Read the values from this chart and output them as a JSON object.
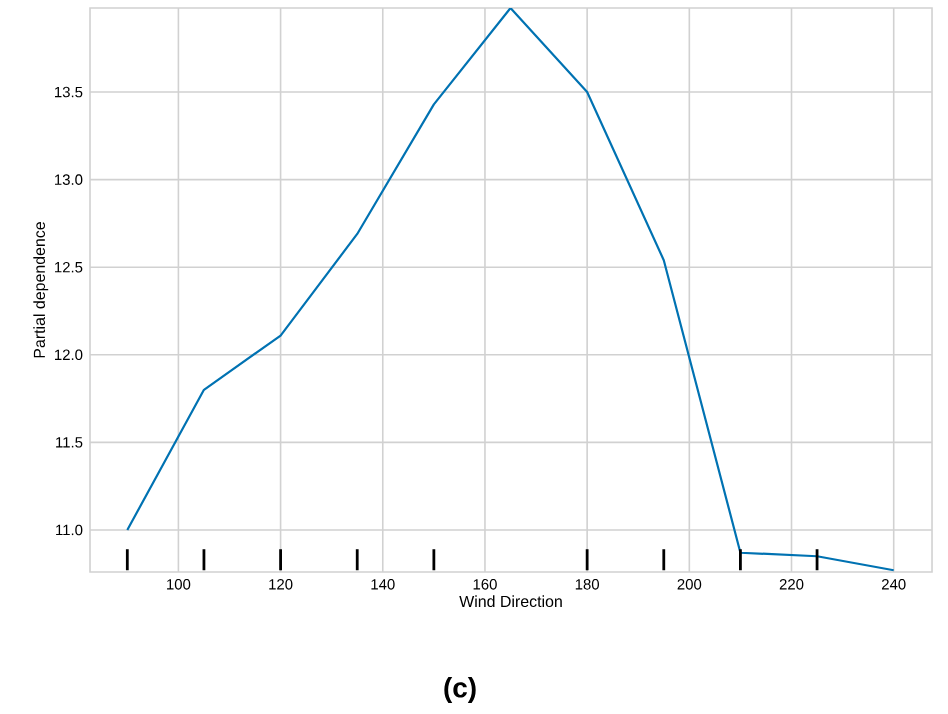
{
  "chart_data": {
    "type": "line",
    "xlabel": "Wind Direction",
    "ylabel": "Partial dependence",
    "annotations": [
      "**(c)**"
    ],
    "xlim": [
      82.7,
      247.5
    ],
    "ylim": [
      10.76,
      13.98
    ],
    "xticks": [
      100,
      120,
      140,
      160,
      180,
      200,
      220,
      240
    ],
    "yticks": [
      {
        "value": 11,
        "label": "11.0"
      },
      {
        "value": 11.5,
        "label": "11.5"
      },
      {
        "value": 12,
        "label": "12.0"
      },
      {
        "value": 12.5,
        "label": "12.5"
      },
      {
        "value": 13,
        "label": "13.0"
      },
      {
        "value": 13.5,
        "label": "13.5"
      }
    ],
    "grid": true,
    "series": [
      {
        "color": "#0072b2",
        "x": [
          90,
          105,
          120,
          135,
          150,
          165,
          180,
          195,
          210,
          225,
          240
        ],
        "values": [
          11.0,
          11.8,
          12.11,
          12.69,
          13.43,
          13.98,
          13.5,
          12.54,
          10.87,
          10.85,
          10.77
        ]
      },
      {
        "type": "bar",
        "color": "#000000",
        "x": [
          90,
          105,
          120,
          135,
          150,
          180,
          195,
          210,
          225
        ],
        "base": [
          10.77,
          10.77,
          10.77,
          10.77,
          10.77,
          10.77,
          10.77,
          10.77,
          10.77
        ],
        "values": [
          0.12,
          0.12,
          0.12,
          0.12,
          0.12,
          0.12,
          0.12,
          0.12,
          0.12
        ]
      }
    ]
  }
}
